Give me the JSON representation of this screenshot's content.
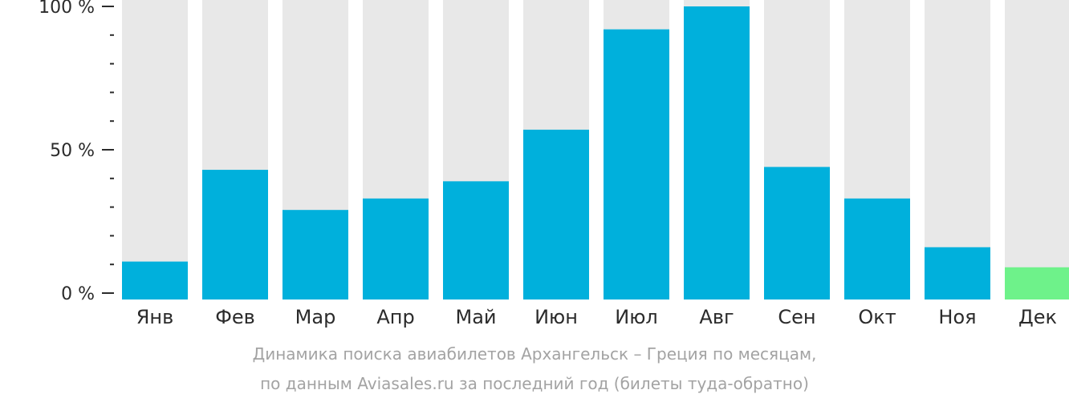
{
  "chart_data": {
    "type": "bar",
    "categories": [
      "Янв",
      "Фев",
      "Мар",
      "Апр",
      "Май",
      "Июн",
      "Июл",
      "Авг",
      "Сен",
      "Окт",
      "Ноя",
      "Дек"
    ],
    "values": [
      11,
      43,
      29,
      33,
      39,
      57,
      92,
      100,
      44,
      33,
      16,
      9
    ],
    "highlighted_category": "Дек",
    "ylim": [
      0,
      100
    ],
    "y_ticks": [
      {
        "value": 100,
        "label": "100 %"
      },
      {
        "value": 50,
        "label": "50 %"
      },
      {
        "value": 0,
        "label": "0 %"
      }
    ],
    "minor_tick_step": 10,
    "colors": {
      "bar": "#00b0dc",
      "highlight": "#6ef28a",
      "track": "#e8e8e8",
      "axis_text": "#2b2b2b",
      "caption_text": "#a3a3a3"
    },
    "caption": [
      "Динамика поиска авиабилетов Архангельск – Греция по месяцам,",
      "по данным Aviasales.ru за последний год (билеты туда-обратно)"
    ]
  }
}
